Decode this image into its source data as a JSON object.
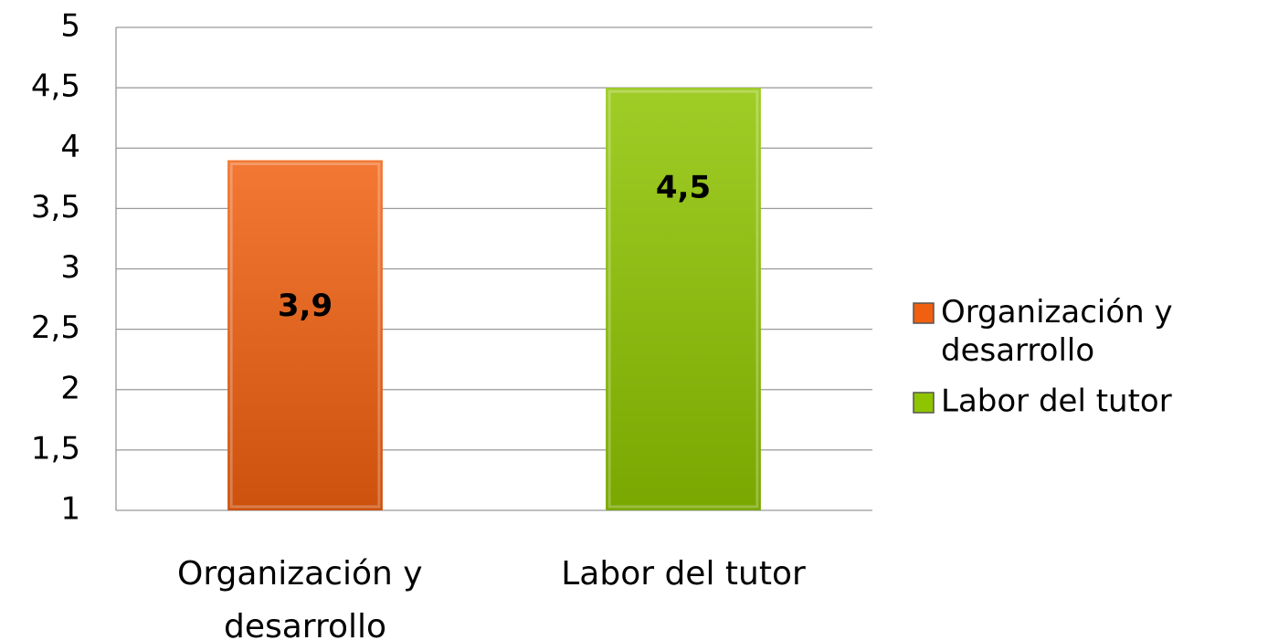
{
  "chart_data": {
    "type": "bar",
    "categories": [
      "Organización y desarrollo",
      "Labor del tutor"
    ],
    "series": [
      {
        "name": "Organización y desarrollo",
        "color": "#f06010",
        "values": [
          3.9,
          null
        ],
        "value_labels": [
          "3,9",
          null
        ]
      },
      {
        "name": "Labor del tutor",
        "color": "#8fc400",
        "values": [
          null,
          4.5
        ],
        "value_labels": [
          null,
          "4,5"
        ]
      }
    ],
    "ylim": [
      1,
      5
    ],
    "yticks": [
      1,
      {
        "value": 1.5,
        "label": "1,5"
      },
      2,
      {
        "value": 2.5,
        "label": "2,5"
      },
      3,
      {
        "value": 3.5,
        "label": "3,5"
      },
      4,
      {
        "value": 4.5,
        "label": "4,5"
      },
      5
    ],
    "grid": true,
    "legend": "right"
  }
}
